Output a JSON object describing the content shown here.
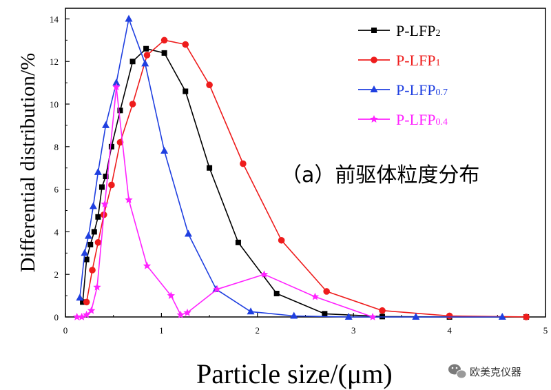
{
  "chart_data": {
    "type": "line",
    "xlabel": "Particle size/(μm)",
    "ylabel": "Differential distribution/%",
    "xlim": [
      0,
      5
    ],
    "ylim": [
      0,
      14.5
    ],
    "x_ticks": [
      0,
      1,
      2,
      3,
      4,
      5
    ],
    "y_ticks": [
      0,
      2,
      4,
      6,
      8,
      10,
      12,
      14
    ],
    "grid": false,
    "legend_position": "top-right",
    "annotation": "（a）前驱体粒度分布",
    "series": [
      {
        "name": "P-LFP2",
        "label_main": "P-LFP",
        "label_sub": "2",
        "color": "#000000",
        "marker": "square",
        "x": [
          0.18,
          0.22,
          0.26,
          0.3,
          0.34,
          0.38,
          0.42,
          0.48,
          0.57,
          0.7,
          0.84,
          1.03,
          1.25,
          1.5,
          1.8,
          2.2,
          2.7,
          3.3,
          4.0,
          4.8
        ],
        "y": [
          0.7,
          2.7,
          3.4,
          4.0,
          4.7,
          6.1,
          6.6,
          8.0,
          9.7,
          12.0,
          12.6,
          12.4,
          10.6,
          7.0,
          3.5,
          1.1,
          0.15,
          0.02,
          0.0,
          0.0
        ]
      },
      {
        "name": "P-LFP1",
        "label_main": "P-LFP",
        "label_sub": "1",
        "color": "#ee1c1c",
        "marker": "circle",
        "x": [
          0.22,
          0.28,
          0.34,
          0.4,
          0.48,
          0.57,
          0.7,
          0.85,
          1.03,
          1.25,
          1.5,
          1.85,
          2.25,
          2.72,
          3.3,
          4.0,
          4.8
        ],
        "y": [
          0.7,
          2.2,
          3.5,
          4.8,
          6.2,
          8.2,
          10.0,
          12.3,
          13.0,
          12.8,
          10.9,
          7.2,
          3.6,
          1.2,
          0.3,
          0.05,
          0.0
        ]
      },
      {
        "name": "P-LFP0.7",
        "label_main": "P-LFP",
        "label_sub": "0.7",
        "color": "#1f3fe0",
        "marker": "triangle",
        "x": [
          0.15,
          0.2,
          0.24,
          0.29,
          0.34,
          0.42,
          0.53,
          0.66,
          0.83,
          1.03,
          1.28,
          1.57,
          1.93,
          2.38,
          2.95,
          3.65,
          4.55
        ],
        "y": [
          0.9,
          3.0,
          3.8,
          5.2,
          6.8,
          9.0,
          11.0,
          14.0,
          11.9,
          7.8,
          3.9,
          1.3,
          0.25,
          0.05,
          0.0,
          0.0,
          0.0
        ]
      },
      {
        "name": "P-LFP0.4",
        "label_main": "P-LFP",
        "label_sub": "0.4",
        "color": "#ff22ff",
        "marker": "star",
        "x": [
          0.12,
          0.17,
          0.22,
          0.27,
          0.33,
          0.41,
          0.53,
          0.66,
          0.85,
          1.1,
          1.2,
          1.27,
          1.58,
          2.07,
          2.6,
          3.2
        ],
        "y": [
          0.0,
          0.0,
          0.1,
          0.3,
          1.4,
          5.3,
          10.8,
          5.5,
          2.4,
          1.0,
          0.1,
          0.2,
          1.3,
          2.0,
          0.95,
          0.0
        ]
      }
    ]
  },
  "watermark": {
    "text": "欧美克仪器",
    "icon": "wechat-icon"
  }
}
